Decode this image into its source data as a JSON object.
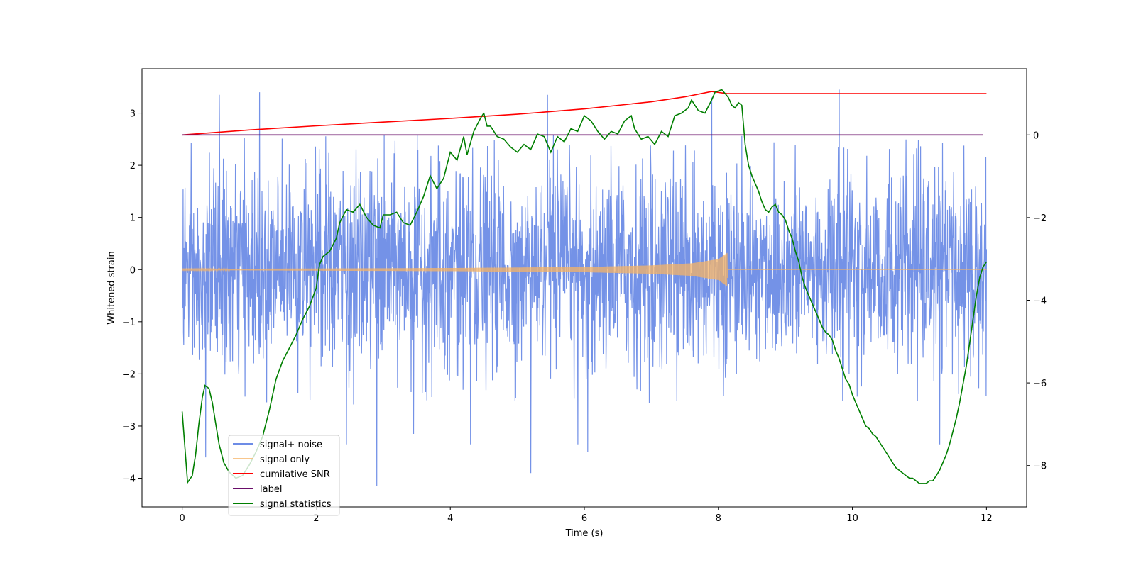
{
  "chart_data": {
    "type": "line",
    "title": "",
    "xlabel": "Time (s)",
    "ylabel": "Whitened strain",
    "xlim": [
      -0.6,
      12.6
    ],
    "ylim": [
      -4.55,
      3.85
    ],
    "y2lim": [
      -9.0,
      1.6
    ],
    "x_ticks": [
      0,
      2,
      4,
      6,
      8,
      10,
      12
    ],
    "x_tick_labels": [
      "0",
      "2",
      "4",
      "6",
      "8",
      "10",
      "12"
    ],
    "y_ticks": [
      -4,
      -3,
      -2,
      -1,
      0,
      1,
      2,
      3
    ],
    "y_tick_labels": [
      "−4",
      "−3",
      "−2",
      "−1",
      "0",
      "1",
      "2",
      "3"
    ],
    "y2_ticks": [
      -8,
      -6,
      -4,
      -2,
      0
    ],
    "y2_tick_labels": [
      "−8",
      "−6",
      "−4",
      "−2",
      "0"
    ],
    "legend_position": "lower-left",
    "series": [
      {
        "name": "signal+ noise",
        "color": "#6d8ce6",
        "axis": "left",
        "kind": "noise",
        "x_range": [
          0,
          12.0
        ],
        "sigma": 1.0,
        "envelope": [
          -2.6,
          2.6
        ],
        "spike_points": [
          [
            0.35,
            -3.6
          ],
          [
            0.55,
            3.35
          ],
          [
            1.15,
            3.4
          ],
          [
            2.45,
            -3.35
          ],
          [
            2.9,
            -4.15
          ],
          [
            3.45,
            -3.15
          ],
          [
            4.3,
            -3.35
          ],
          [
            5.2,
            -3.9
          ],
          [
            5.45,
            3.35
          ],
          [
            5.9,
            -3.35
          ],
          [
            6.05,
            -3.5
          ],
          [
            7.9,
            3.3
          ],
          [
            9.8,
            3.45
          ],
          [
            11.3,
            -3.35
          ]
        ]
      },
      {
        "name": "signal only",
        "color": "#f5b366",
        "axis": "left",
        "kind": "chirp",
        "x_range": [
          0,
          12.0
        ],
        "merger_time": 8.13,
        "envelope_points": [
          [
            0,
            0.01
          ],
          [
            2,
            0.02
          ],
          [
            4,
            0.03
          ],
          [
            6,
            0.05
          ],
          [
            7,
            0.08
          ],
          [
            7.6,
            0.12
          ],
          [
            8.0,
            0.2
          ],
          [
            8.13,
            0.32
          ],
          [
            8.14,
            0.0
          ],
          [
            12,
            0.0
          ]
        ]
      },
      {
        "name": "cumilative SNR",
        "color": "#ff0000",
        "axis": "right",
        "points": [
          [
            0,
            0.0
          ],
          [
            1,
            0.12
          ],
          [
            2,
            0.22
          ],
          [
            3,
            0.31
          ],
          [
            4,
            0.4
          ],
          [
            5,
            0.5
          ],
          [
            6,
            0.63
          ],
          [
            7,
            0.8
          ],
          [
            7.5,
            0.92
          ],
          [
            7.9,
            1.05
          ],
          [
            8.13,
            1.0
          ],
          [
            8.15,
            1.0
          ],
          [
            12,
            1.0
          ]
        ]
      },
      {
        "name": "label",
        "color": "#6a0d6a",
        "axis": "right",
        "points": [
          [
            0,
            0.0
          ],
          [
            11.95,
            0.0
          ]
        ]
      },
      {
        "name": "signal statistics",
        "color": "#007f00",
        "axis": "left",
        "points": [
          [
            0,
            -2.72
          ],
          [
            0.08,
            -4.08
          ],
          [
            0.15,
            -3.95
          ],
          [
            0.2,
            -3.55
          ],
          [
            0.25,
            -2.95
          ],
          [
            0.3,
            -2.45
          ],
          [
            0.34,
            -2.22
          ],
          [
            0.4,
            -2.28
          ],
          [
            0.45,
            -2.55
          ],
          [
            0.5,
            -2.95
          ],
          [
            0.55,
            -3.35
          ],
          [
            0.62,
            -3.7
          ],
          [
            0.7,
            -3.88
          ],
          [
            0.8,
            -4.0
          ],
          [
            0.9,
            -3.95
          ],
          [
            1.0,
            -3.75
          ],
          [
            1.1,
            -3.5
          ],
          [
            1.2,
            -3.2
          ],
          [
            1.3,
            -2.7
          ],
          [
            1.4,
            -2.1
          ],
          [
            1.5,
            -1.75
          ],
          [
            1.6,
            -1.5
          ],
          [
            1.7,
            -1.25
          ],
          [
            1.8,
            -0.95
          ],
          [
            1.9,
            -0.7
          ],
          [
            2.0,
            -0.35
          ],
          [
            2.05,
            0.1
          ],
          [
            2.1,
            0.25
          ],
          [
            2.2,
            0.35
          ],
          [
            2.3,
            0.6
          ],
          [
            2.35,
            0.9
          ],
          [
            2.45,
            1.15
          ],
          [
            2.55,
            1.1
          ],
          [
            2.65,
            1.25
          ],
          [
            2.75,
            1.0
          ],
          [
            2.85,
            0.85
          ],
          [
            2.95,
            0.8
          ],
          [
            3.0,
            1.05
          ],
          [
            3.1,
            1.05
          ],
          [
            3.2,
            1.1
          ],
          [
            3.3,
            0.9
          ],
          [
            3.4,
            0.85
          ],
          [
            3.5,
            1.1
          ],
          [
            3.6,
            1.4
          ],
          [
            3.7,
            1.8
          ],
          [
            3.8,
            1.55
          ],
          [
            3.9,
            1.75
          ],
          [
            4.0,
            2.25
          ],
          [
            4.1,
            2.1
          ],
          [
            4.2,
            2.55
          ],
          [
            4.25,
            2.2
          ],
          [
            4.35,
            2.65
          ],
          [
            4.45,
            2.9
          ],
          [
            4.5,
            3.0
          ],
          [
            4.55,
            2.75
          ],
          [
            4.6,
            2.75
          ],
          [
            4.7,
            2.55
          ],
          [
            4.8,
            2.5
          ],
          [
            4.9,
            2.35
          ],
          [
            5.0,
            2.25
          ],
          [
            5.1,
            2.4
          ],
          [
            5.2,
            2.3
          ],
          [
            5.3,
            2.6
          ],
          [
            5.4,
            2.55
          ],
          [
            5.5,
            2.25
          ],
          [
            5.6,
            2.55
          ],
          [
            5.7,
            2.45
          ],
          [
            5.8,
            2.7
          ],
          [
            5.9,
            2.65
          ],
          [
            6.0,
            2.95
          ],
          [
            6.1,
            2.85
          ],
          [
            6.2,
            2.65
          ],
          [
            6.3,
            2.5
          ],
          [
            6.4,
            2.65
          ],
          [
            6.5,
            2.6
          ],
          [
            6.6,
            2.85
          ],
          [
            6.7,
            2.95
          ],
          [
            6.75,
            2.7
          ],
          [
            6.85,
            2.5
          ],
          [
            6.95,
            2.55
          ],
          [
            7.05,
            2.4
          ],
          [
            7.15,
            2.65
          ],
          [
            7.25,
            2.55
          ],
          [
            7.35,
            2.95
          ],
          [
            7.45,
            3.0
          ],
          [
            7.55,
            3.1
          ],
          [
            7.6,
            3.25
          ],
          [
            7.7,
            3.05
          ],
          [
            7.8,
            3.0
          ],
          [
            7.9,
            3.25
          ],
          [
            7.95,
            3.4
          ],
          [
            8.05,
            3.45
          ],
          [
            8.15,
            3.3
          ],
          [
            8.2,
            3.15
          ],
          [
            8.25,
            3.1
          ],
          [
            8.3,
            3.2
          ],
          [
            8.35,
            3.15
          ],
          [
            8.4,
            2.4
          ],
          [
            8.45,
            2.0
          ],
          [
            8.5,
            1.8
          ],
          [
            8.55,
            1.65
          ],
          [
            8.6,
            1.5
          ],
          [
            8.65,
            1.3
          ],
          [
            8.7,
            1.15
          ],
          [
            8.75,
            1.1
          ],
          [
            8.8,
            1.2
          ],
          [
            8.85,
            1.25
          ],
          [
            8.9,
            1.1
          ],
          [
            8.95,
            1.05
          ],
          [
            9.0,
            0.95
          ],
          [
            9.05,
            0.75
          ],
          [
            9.1,
            0.6
          ],
          [
            9.15,
            0.35
          ],
          [
            9.2,
            0.15
          ],
          [
            9.25,
            -0.15
          ],
          [
            9.3,
            -0.35
          ],
          [
            9.35,
            -0.5
          ],
          [
            9.4,
            -0.65
          ],
          [
            9.45,
            -0.8
          ],
          [
            9.5,
            -0.95
          ],
          [
            9.55,
            -1.1
          ],
          [
            9.6,
            -1.2
          ],
          [
            9.65,
            -1.25
          ],
          [
            9.7,
            -1.35
          ],
          [
            9.75,
            -1.55
          ],
          [
            9.8,
            -1.7
          ],
          [
            9.85,
            -1.9
          ],
          [
            9.9,
            -2.1
          ],
          [
            9.95,
            -2.2
          ],
          [
            10.0,
            -2.4
          ],
          [
            10.05,
            -2.55
          ],
          [
            10.1,
            -2.7
          ],
          [
            10.15,
            -2.85
          ],
          [
            10.2,
            -3.0
          ],
          [
            10.25,
            -3.05
          ],
          [
            10.3,
            -3.15
          ],
          [
            10.35,
            -3.2
          ],
          [
            10.4,
            -3.3
          ],
          [
            10.45,
            -3.4
          ],
          [
            10.5,
            -3.5
          ],
          [
            10.55,
            -3.6
          ],
          [
            10.6,
            -3.7
          ],
          [
            10.65,
            -3.8
          ],
          [
            10.7,
            -3.85
          ],
          [
            10.75,
            -3.9
          ],
          [
            10.8,
            -3.95
          ],
          [
            10.85,
            -4.0
          ],
          [
            10.9,
            -4.0
          ],
          [
            10.95,
            -4.05
          ],
          [
            11.0,
            -4.1
          ],
          [
            11.05,
            -4.1
          ],
          [
            11.1,
            -4.1
          ],
          [
            11.15,
            -4.05
          ],
          [
            11.2,
            -4.05
          ],
          [
            11.25,
            -3.95
          ],
          [
            11.3,
            -3.85
          ],
          [
            11.35,
            -3.7
          ],
          [
            11.4,
            -3.55
          ],
          [
            11.45,
            -3.35
          ],
          [
            11.5,
            -3.1
          ],
          [
            11.55,
            -2.85
          ],
          [
            11.6,
            -2.55
          ],
          [
            11.65,
            -2.2
          ],
          [
            11.7,
            -1.85
          ],
          [
            11.75,
            -1.4
          ],
          [
            11.8,
            -0.95
          ],
          [
            11.85,
            -0.5
          ],
          [
            11.9,
            -0.15
          ],
          [
            11.95,
            0.05
          ],
          [
            12.0,
            0.15
          ]
        ]
      }
    ]
  }
}
